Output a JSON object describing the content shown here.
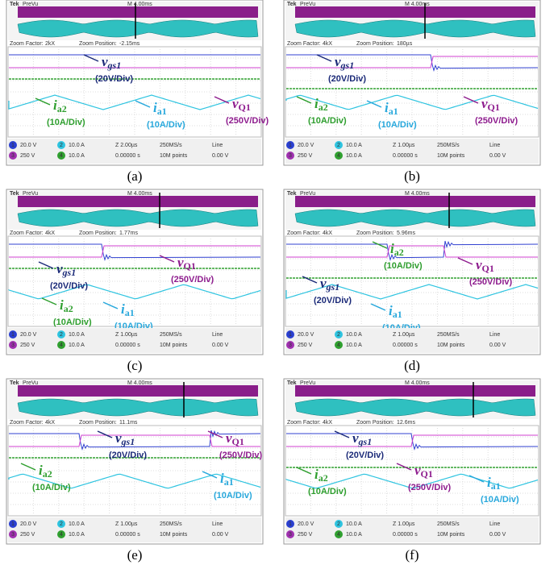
{
  "common": {
    "brand": "Tek",
    "mode": "PreVu",
    "timebase": "M 4.00ms",
    "zoom_factor_label": "Zoom Factor:",
    "zoom_position_label": "Zoom Position:",
    "channels": [
      {
        "n": "1",
        "scale": "20.0 V",
        "color": "#2a3fd0"
      },
      {
        "n": "2",
        "scale": "10.0 A",
        "color": "#2ec4e0"
      },
      {
        "n": "3",
        "scale": "250 V",
        "color": "#a030b0"
      },
      {
        "n": "4",
        "scale": "10.0 A",
        "color": "#30a030"
      }
    ],
    "sample_rate": "250MS/s",
    "record": "10M points",
    "trigger": "Line",
    "trigger_level": "0.00 V",
    "trigger_time": "0.00000 s",
    "signals": [
      {
        "symbol": "v",
        "sub": "gs1",
        "scale": "(20V/Div)",
        "color": "#1b2a78"
      },
      {
        "symbol": "i",
        "sub": "a2",
        "scale": "(10A/Div)",
        "color": "#2e9e2e"
      },
      {
        "symbol": "i",
        "sub": "a1",
        "scale": "(10A/Div)",
        "color": "#28a8dc"
      },
      {
        "symbol": "v",
        "sub": "Q1",
        "scale": "(250V/Div)",
        "color": "#8e1c8e"
      }
    ]
  },
  "panels": [
    {
      "caption": "(a)",
      "zoom_factor": "2kX",
      "zoom_position": "-2.15ms",
      "zoom_scale": "Z 2.00µs"
    },
    {
      "caption": "(b)",
      "zoom_factor": "4kX",
      "zoom_position": "180µs",
      "zoom_scale": "Z 1.00µs"
    },
    {
      "caption": "(c)",
      "zoom_factor": "4kX",
      "zoom_position": "1.77ms",
      "zoom_scale": "Z 1.00µs"
    },
    {
      "caption": "(d)",
      "zoom_factor": "4kX",
      "zoom_position": "5.96ms",
      "zoom_scale": "Z 1.00µs"
    },
    {
      "caption": "(e)",
      "zoom_factor": "4kX",
      "zoom_position": "11.1ms",
      "zoom_scale": "Z 1.00µs"
    },
    {
      "caption": "(f)",
      "zoom_factor": "4kX",
      "zoom_position": "12.6ms",
      "zoom_scale": "Z 1.00µs"
    }
  ]
}
